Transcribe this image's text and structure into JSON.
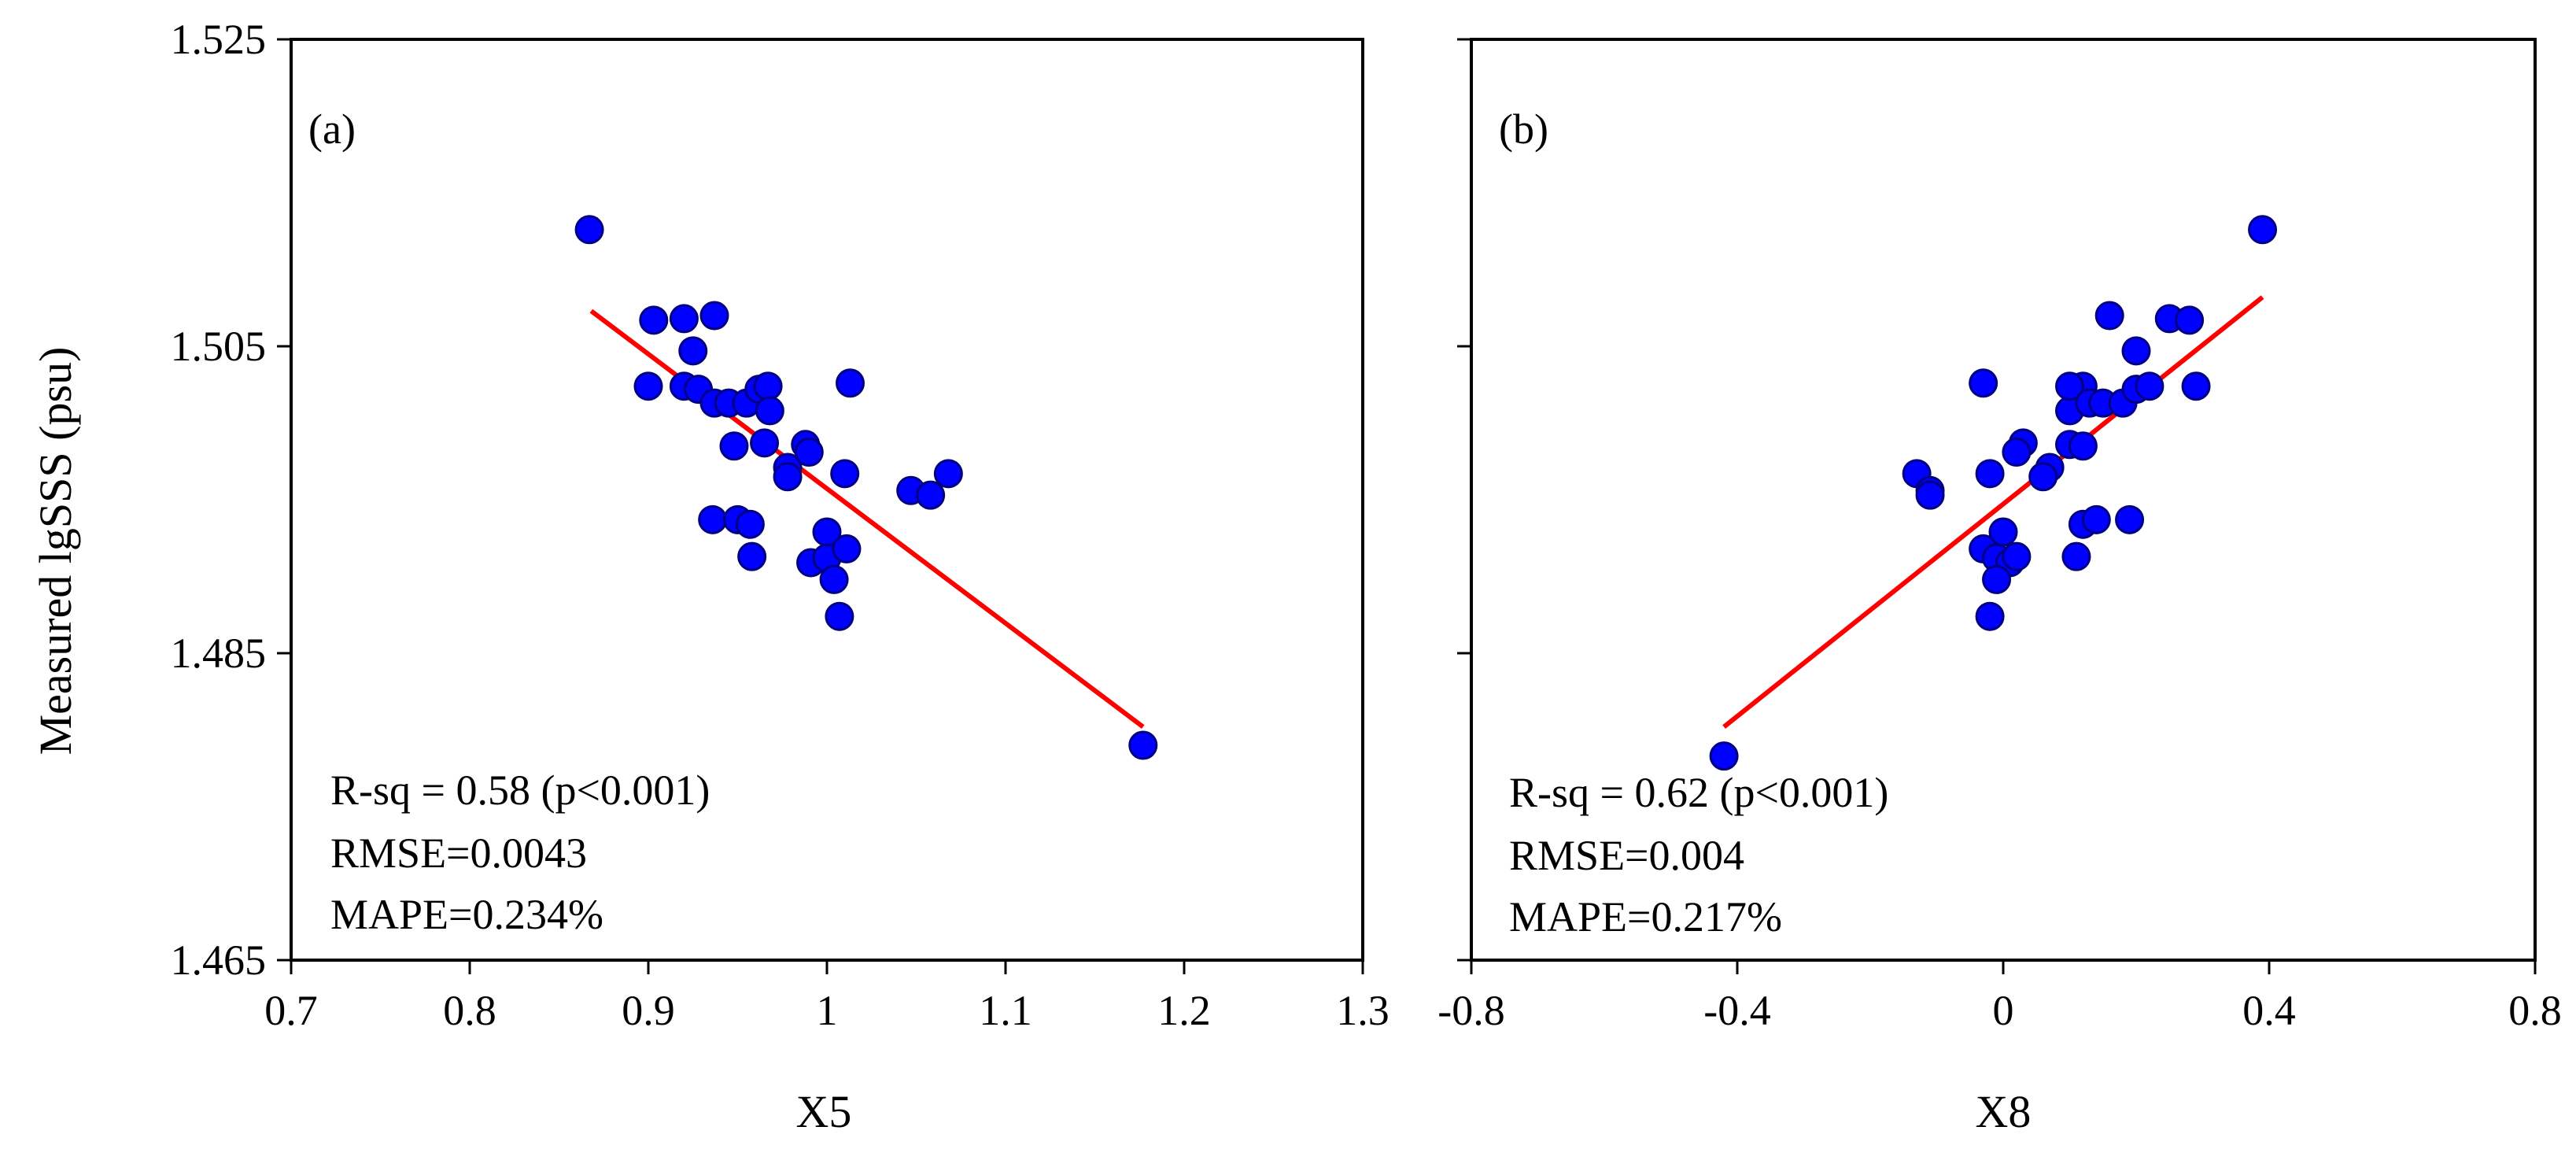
{
  "chart_data": [
    {
      "type": "scatter",
      "panel_label": "(a)",
      "xlabel": "X5",
      "ylabel": "Measured lgSSS (psu)",
      "xlim": [
        0.7,
        1.3
      ],
      "ylim": [
        1.465,
        1.525
      ],
      "xticks": [
        0.7,
        0.8,
        0.9,
        1,
        1.1,
        1.2,
        1.3
      ],
      "xtick_labels": [
        "0.7",
        "0.8",
        "0.9",
        "1",
        "1.1",
        "1.2",
        "1.3"
      ],
      "yticks": [
        1.465,
        1.485,
        1.505,
        1.525
      ],
      "ytick_labels": [
        "1.465",
        "1.485",
        "1.505",
        "1.525"
      ],
      "points": [
        {
          "x": 0.867,
          "y": 1.5126
        },
        {
          "x": 0.903,
          "y": 1.5067
        },
        {
          "x": 0.92,
          "y": 1.5068
        },
        {
          "x": 0.937,
          "y": 1.507
        },
        {
          "x": 0.925,
          "y": 1.5047
        },
        {
          "x": 0.9,
          "y": 1.5024
        },
        {
          "x": 0.92,
          "y": 1.5024
        },
        {
          "x": 0.928,
          "y": 1.5022
        },
        {
          "x": 0.937,
          "y": 1.5013
        },
        {
          "x": 0.945,
          "y": 1.5013
        },
        {
          "x": 0.955,
          "y": 1.5013
        },
        {
          "x": 0.962,
          "y": 1.5022
        },
        {
          "x": 0.967,
          "y": 1.5024
        },
        {
          "x": 0.968,
          "y": 1.5008
        },
        {
          "x": 1.013,
          "y": 1.5026
        },
        {
          "x": 0.948,
          "y": 1.4985
        },
        {
          "x": 0.965,
          "y": 1.4987
        },
        {
          "x": 0.978,
          "y": 1.4971
        },
        {
          "x": 0.978,
          "y": 1.4965
        },
        {
          "x": 0.988,
          "y": 1.4986
        },
        {
          "x": 0.99,
          "y": 1.4981
        },
        {
          "x": 1.01,
          "y": 1.4967
        },
        {
          "x": 0.936,
          "y": 1.4937
        },
        {
          "x": 0.95,
          "y": 1.4937
        },
        {
          "x": 0.957,
          "y": 1.4934
        },
        {
          "x": 0.958,
          "y": 1.4913
        },
        {
          "x": 0.991,
          "y": 1.4909
        },
        {
          "x": 1.0,
          "y": 1.4929
        },
        {
          "x": 1.0,
          "y": 1.4912
        },
        {
          "x": 1.011,
          "y": 1.4918
        },
        {
          "x": 1.004,
          "y": 1.4898
        },
        {
          "x": 1.007,
          "y": 1.4874
        },
        {
          "x": 1.047,
          "y": 1.4956
        },
        {
          "x": 1.058,
          "y": 1.4953
        },
        {
          "x": 1.068,
          "y": 1.4967
        },
        {
          "x": 1.177,
          "y": 1.479
        }
      ],
      "fit_line": {
        "x": [
          0.868,
          1.177
        ],
        "y": [
          1.5073,
          1.4802
        ]
      },
      "stats": [
        "R-sq = 0.58 (p<0.001)",
        "RMSE=0.0043",
        "MAPE=0.234%"
      ]
    },
    {
      "type": "scatter",
      "panel_label": "(b)",
      "xlabel": "X8",
      "ylabel": "",
      "xlim": [
        -0.8,
        0.8
      ],
      "ylim": [
        1.465,
        1.525
      ],
      "xticks": [
        -0.8,
        -0.4,
        0,
        0.4,
        0.8
      ],
      "xtick_labels": [
        "-0.8",
        "-0.4",
        "0",
        "0.4",
        "0.8"
      ],
      "yticks": [
        1.465,
        1.485,
        1.505,
        1.525
      ],
      "ytick_labels": [],
      "points": [
        {
          "x": -0.42,
          "y": 1.4783
        },
        {
          "x": -0.03,
          "y": 1.5026
        },
        {
          "x": -0.13,
          "y": 1.4967
        },
        {
          "x": -0.11,
          "y": 1.4956
        },
        {
          "x": -0.11,
          "y": 1.4953
        },
        {
          "x": -0.02,
          "y": 1.4967
        },
        {
          "x": 0.0,
          "y": 1.4929
        },
        {
          "x": -0.03,
          "y": 1.4918
        },
        {
          "x": -0.01,
          "y": 1.4912
        },
        {
          "x": 0.01,
          "y": 1.4909
        },
        {
          "x": -0.01,
          "y": 1.4898
        },
        {
          "x": -0.02,
          "y": 1.4874
        },
        {
          "x": 0.02,
          "y": 1.4913
        },
        {
          "x": 0.03,
          "y": 1.4987
        },
        {
          "x": 0.02,
          "y": 1.4981
        },
        {
          "x": 0.07,
          "y": 1.4971
        },
        {
          "x": 0.06,
          "y": 1.4965
        },
        {
          "x": 0.1,
          "y": 1.4986
        },
        {
          "x": 0.12,
          "y": 1.4985
        },
        {
          "x": 0.1,
          "y": 1.5008
        },
        {
          "x": 0.12,
          "y": 1.5024
        },
        {
          "x": 0.1,
          "y": 1.5024
        },
        {
          "x": 0.13,
          "y": 1.5013
        },
        {
          "x": 0.15,
          "y": 1.5013
        },
        {
          "x": 0.11,
          "y": 1.4913
        },
        {
          "x": 0.12,
          "y": 1.4934
        },
        {
          "x": 0.14,
          "y": 1.4937
        },
        {
          "x": 0.19,
          "y": 1.4937
        },
        {
          "x": 0.18,
          "y": 1.5013
        },
        {
          "x": 0.2,
          "y": 1.5022
        },
        {
          "x": 0.22,
          "y": 1.5024
        },
        {
          "x": 0.2,
          "y": 1.5047
        },
        {
          "x": 0.16,
          "y": 1.507
        },
        {
          "x": 0.25,
          "y": 1.5068
        },
        {
          "x": 0.28,
          "y": 1.5067
        },
        {
          "x": 0.29,
          "y": 1.5024
        },
        {
          "x": 0.39,
          "y": 1.5126
        }
      ],
      "fit_line": {
        "x": [
          -0.42,
          0.39
        ],
        "y": [
          1.4802,
          1.5082
        ]
      },
      "stats": [
        "R-sq = 0.62 (p<0.001)",
        "RMSE=0.004",
        "MAPE=0.217%"
      ]
    }
  ],
  "colors": {
    "point_fill": "#0000ff",
    "point_stroke": "#000080",
    "fit_line": "#ff0000",
    "axis": "#000000"
  }
}
